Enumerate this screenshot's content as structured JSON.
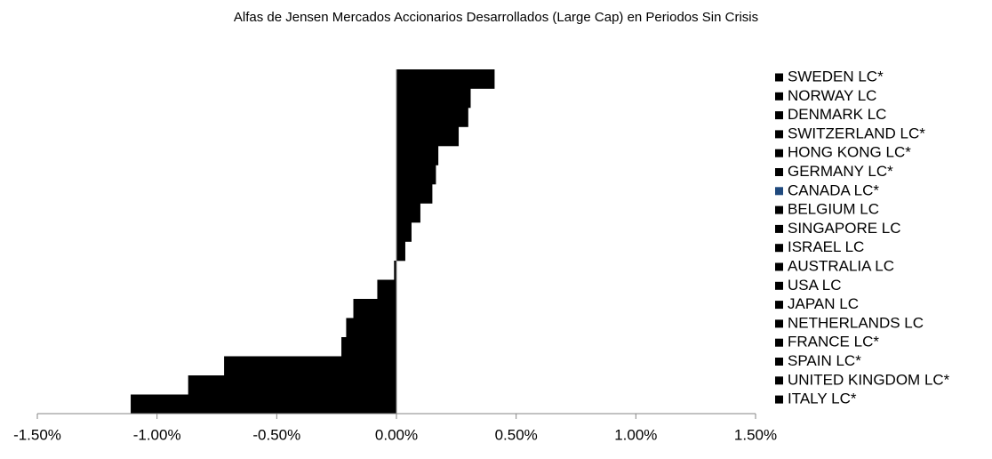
{
  "chart_data": {
    "type": "hbar",
    "title": "Alfas de Jensen Mercados Accionarios Desarrollados (Large Cap) en Periodos Sin Crisis",
    "categories": [
      "SWEDEN LC*",
      "NORWAY LC",
      "DENMARK LC",
      "SWITZERLAND LC*",
      "HONG KONG LC*",
      "GERMANY LC*",
      "CANADA LC*",
      "BELGIUM LC",
      "SINGAPORE LC",
      "ISRAEL LC",
      "AUSTRALIA LC",
      "USA LC",
      "JAPAN LC",
      "NETHERLANDS LC",
      "FRANCE LC*",
      "SPAIN LC*",
      "UNITED KINGDOM LC*",
      "ITALY LC*"
    ],
    "values": [
      0.41,
      0.31,
      0.3,
      0.26,
      0.175,
      0.165,
      0.15,
      0.1,
      0.063,
      0.037,
      -0.01,
      -0.08,
      -0.18,
      -0.21,
      -0.23,
      -0.72,
      -0.87,
      -1.11
    ],
    "color": "#000000",
    "legend_colors": [
      "#000000",
      "#000000",
      "#000000",
      "#000000",
      "#000000",
      "#000000",
      "#1f497d",
      "#000000",
      "#000000",
      "#000000",
      "#000000",
      "#000000",
      "#000000",
      "#000000",
      "#000000",
      "#000000",
      "#000000",
      "#000000"
    ],
    "legend": "right",
    "xlim": [
      -1.5,
      1.5
    ],
    "xticks": [
      {
        "value": -1.5,
        "label": "-1.50%"
      },
      {
        "value": -1.0,
        "label": "-1.00%"
      },
      {
        "value": -0.5,
        "label": "-0.50%"
      },
      {
        "value": 0,
        "label": "0.00%"
      },
      {
        "value": 0.5,
        "label": "0.50%"
      },
      {
        "value": 1.0,
        "label": "1.00%"
      },
      {
        "value": 1.5,
        "label": "1.50%"
      }
    ],
    "grid": false
  }
}
